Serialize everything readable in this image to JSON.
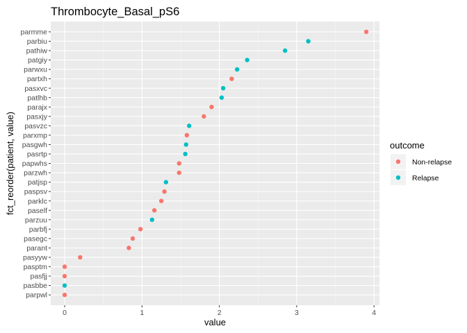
{
  "chart_data": {
    "type": "scatter",
    "title": "Thrombocyte_Basal_pS6",
    "xlabel": "value",
    "ylabel": "fct_reorder(patient, value)",
    "xlim": [
      -0.18,
      4.07
    ],
    "xticks": [
      0,
      1,
      2,
      3,
      4
    ],
    "grid": true,
    "legend": {
      "title": "outcome",
      "position": "right",
      "entries": [
        {
          "name": "Non-relapse",
          "color": "#F8766D"
        },
        {
          "name": "Relapse",
          "color": "#00BFC4"
        }
      ]
    },
    "categories": [
      "parmme",
      "parbiu",
      "pathiw",
      "patgiy",
      "parwxu",
      "partxh",
      "pasxvc",
      "patlhb",
      "parajx",
      "pasxjy",
      "pasvzc",
      "parxmp",
      "pasgwh",
      "pasrtp",
      "papwhs",
      "parzwh",
      "patjsp",
      "paspsv",
      "parklc",
      "paself",
      "parzuu",
      "parbfj",
      "pasegc",
      "parant",
      "pasyyw",
      "pasptm",
      "pasfjj",
      "pasbbe",
      "parpwl"
    ],
    "points": [
      {
        "patient": "parmme",
        "value": 3.9,
        "outcome": "Non-relapse"
      },
      {
        "patient": "parbiu",
        "value": 3.15,
        "outcome": "Relapse"
      },
      {
        "patient": "pathiw",
        "value": 2.85,
        "outcome": "Relapse"
      },
      {
        "patient": "patgiy",
        "value": 2.36,
        "outcome": "Relapse"
      },
      {
        "patient": "parwxu",
        "value": 2.23,
        "outcome": "Relapse"
      },
      {
        "patient": "partxh",
        "value": 2.16,
        "outcome": "Non-relapse"
      },
      {
        "patient": "pasxvc",
        "value": 2.05,
        "outcome": "Relapse"
      },
      {
        "patient": "patlhb",
        "value": 2.03,
        "outcome": "Relapse"
      },
      {
        "patient": "parajx",
        "value": 1.9,
        "outcome": "Non-relapse"
      },
      {
        "patient": "pasxjy",
        "value": 1.8,
        "outcome": "Non-relapse"
      },
      {
        "patient": "pasvzc",
        "value": 1.61,
        "outcome": "Relapse"
      },
      {
        "patient": "parxmp",
        "value": 1.58,
        "outcome": "Non-relapse"
      },
      {
        "patient": "pasgwh",
        "value": 1.57,
        "outcome": "Relapse"
      },
      {
        "patient": "pasrtp",
        "value": 1.56,
        "outcome": "Relapse"
      },
      {
        "patient": "papwhs",
        "value": 1.48,
        "outcome": "Non-relapse"
      },
      {
        "patient": "parzwh",
        "value": 1.48,
        "outcome": "Non-relapse"
      },
      {
        "patient": "patjsp",
        "value": 1.31,
        "outcome": "Relapse"
      },
      {
        "patient": "paspsv",
        "value": 1.29,
        "outcome": "Non-relapse"
      },
      {
        "patient": "parklc",
        "value": 1.25,
        "outcome": "Non-relapse"
      },
      {
        "patient": "paself",
        "value": 1.16,
        "outcome": "Non-relapse"
      },
      {
        "patient": "parzuu",
        "value": 1.13,
        "outcome": "Relapse"
      },
      {
        "patient": "parbfj",
        "value": 0.98,
        "outcome": "Non-relapse"
      },
      {
        "patient": "pasegc",
        "value": 0.88,
        "outcome": "Non-relapse"
      },
      {
        "patient": "parant",
        "value": 0.83,
        "outcome": "Non-relapse"
      },
      {
        "patient": "pasyyw",
        "value": 0.2,
        "outcome": "Non-relapse"
      },
      {
        "patient": "pasptm",
        "value": 0.0,
        "outcome": "Non-relapse"
      },
      {
        "patient": "pasfjj",
        "value": 0.0,
        "outcome": "Non-relapse"
      },
      {
        "patient": "pasbbe",
        "value": 0.0,
        "outcome": "Relapse"
      },
      {
        "patient": "parpwl",
        "value": 0.0,
        "outcome": "Non-relapse"
      }
    ]
  }
}
